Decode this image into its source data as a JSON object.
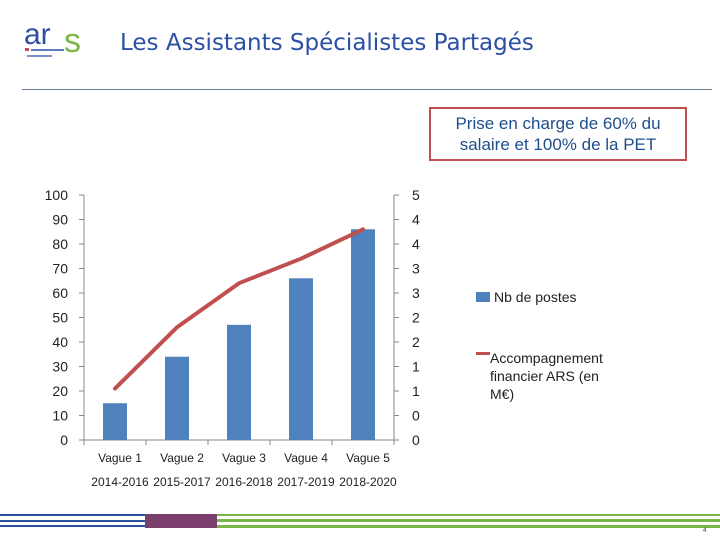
{
  "header": {
    "logo_text": "ars",
    "title": "Les Assistants Spécialistes Partagés"
  },
  "callout": {
    "line1": "Prise en charge de 60% du",
    "line2": "salaire et 100% de la PET"
  },
  "colors": {
    "title": "#2a4fa3",
    "bar": "#4f81bd",
    "line": "#c0504d",
    "callout_border": "#c0504d",
    "callout_text": "#1f4e8c"
  },
  "chart_data": {
    "type": "bar",
    "categories": [
      "Vague 1",
      "Vague 2",
      "Vague 3",
      "Vague 4",
      "Vague 5"
    ],
    "category_periods": [
      "2014-2016",
      "2015-2017",
      "2016-2018",
      "2017-2019",
      "2018-2020"
    ],
    "series": [
      {
        "name": "Nb de postes",
        "type": "bar",
        "axis": "left",
        "values": [
          15,
          34,
          47,
          66,
          86
        ]
      },
      {
        "name": "Accompagnement financier ARS (en M€)",
        "type": "line",
        "axis": "right",
        "values": [
          1.05,
          2.3,
          3.2,
          3.7,
          4.3
        ]
      }
    ],
    "y_left": {
      "ylim": [
        0,
        100
      ],
      "ticks": [
        "0",
        "10",
        "20",
        "30",
        "40",
        "50",
        "60",
        "70",
        "80",
        "90",
        "100"
      ]
    },
    "y_right": {
      "ylim": [
        0,
        5
      ],
      "ticks": [
        "0",
        "0.5",
        "1",
        "1.5",
        "2",
        "2.5",
        "3",
        "3.5",
        "4",
        "4.5",
        "5"
      ]
    },
    "grid": false,
    "legend_position": "right"
  },
  "legend": {
    "bar_label": "Nb de postes",
    "line_label_1": "Accompagnement",
    "line_label_2": "financier ARS (en",
    "line_label_3": "M€)"
  },
  "footer": {
    "page_number": "4"
  }
}
